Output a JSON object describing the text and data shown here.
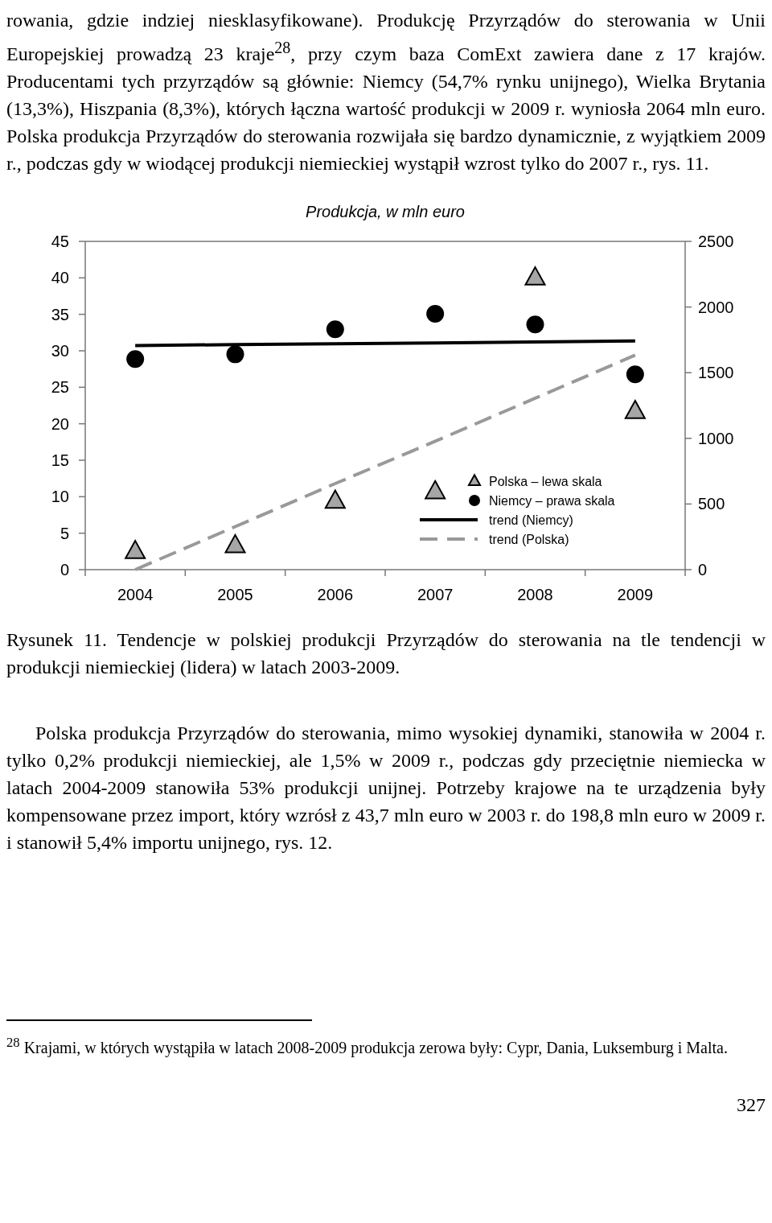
{
  "chart_data": {
    "type": "scatter",
    "title": "Produkcja, w mln euro",
    "categories": [
      "2004",
      "2005",
      "2006",
      "2007",
      "2008",
      "2009"
    ],
    "series": [
      {
        "name": "Polska – lewa skala",
        "marker": "triangle",
        "color": "#a6a6a6",
        "values": [
          2.5,
          3.3,
          9.4,
          10.7,
          40.0,
          21.7
        ]
      },
      {
        "name": "Niemcy – prawa skala",
        "marker": "circle",
        "axis": "y2",
        "color": "#000000",
        "values": [
          1604,
          1640,
          1830,
          1948,
          1867,
          1488
        ]
      },
      {
        "name": "trend (Niemcy)",
        "type": "line",
        "axis": "y2",
        "line_style": "solid",
        "color": "#000000",
        "values": [
          1707,
          1714,
          1721,
          1727,
          1734,
          1741
        ]
      },
      {
        "name": "trend (Polska)",
        "type": "line",
        "line_style": "dashed",
        "color": "#999999",
        "values": [
          0,
          5.9,
          11.8,
          17.6,
          23.5,
          29.4
        ]
      }
    ],
    "ylim": [
      0,
      45
    ],
    "yticks": [
      0,
      5,
      10,
      15,
      20,
      25,
      30,
      35,
      40,
      45
    ],
    "y2lim": [
      0,
      2500
    ],
    "y2ticks": [
      0,
      500,
      1000,
      1500,
      2000,
      2500
    ],
    "grid": false,
    "legend": "bottom right",
    "annotations": [
      "rowania, gdzie indziej niesklasyfikowane). Produkcję Przyrządów do sterowania w Unii Europejskiej prowadzą 23 kraje$^{28}$, przy czym baza ComExt zawiera dane z 17 krajów. Producentami tych przyrządów są głównie: Niemcy (54,7% rynku unijnego), Wielka Brytania (13,3%), Hiszpania (8,3%), których łączna wartość produkcji w 2009 r. wyniosła 2064 mln euro. Polska produkcja Przyrządów do sterowania rozwijała się bardzo dynamicznie, z wyjątkiem 2009 r., podczas gdy w wiodącej produkcji niemieckiej wystąpił wzrost tylko do 2007 r., rys. 11.",
      "Rysunek 11. Tendencje w polskiej produkcji Przyrządów do sterowania na tle tendencji w produkcji niemieckiej (lidera) w latach 2003-2009.",
      "Polska produkcja Przyrządów do sterowania, mimo wysokiej dynamiki, stanowiła w 2004 r. tylko 0,2% produkcji niemieckiej, ale 1,5% w 2009 r., podczas gdy przeciętnie niemiecka w latach 2004-2009 stanowiła 53% produkcji unijnej. Potrzeby krajowe na te urządzenia były kompensowane przez import, który wzrósł z 43,7 mln euro w 2003 r. do 198,8 mln euro w 2009 r. i stanowił 5,4% importu unijnego, rys. 12.",
      "$^{28}$ Krajami, w których wystąpiła w latach 2008-2009 produkcja zerowa były: Cypr, Dania, Luksemburg i Malta.",
      "327"
    ]
  }
}
